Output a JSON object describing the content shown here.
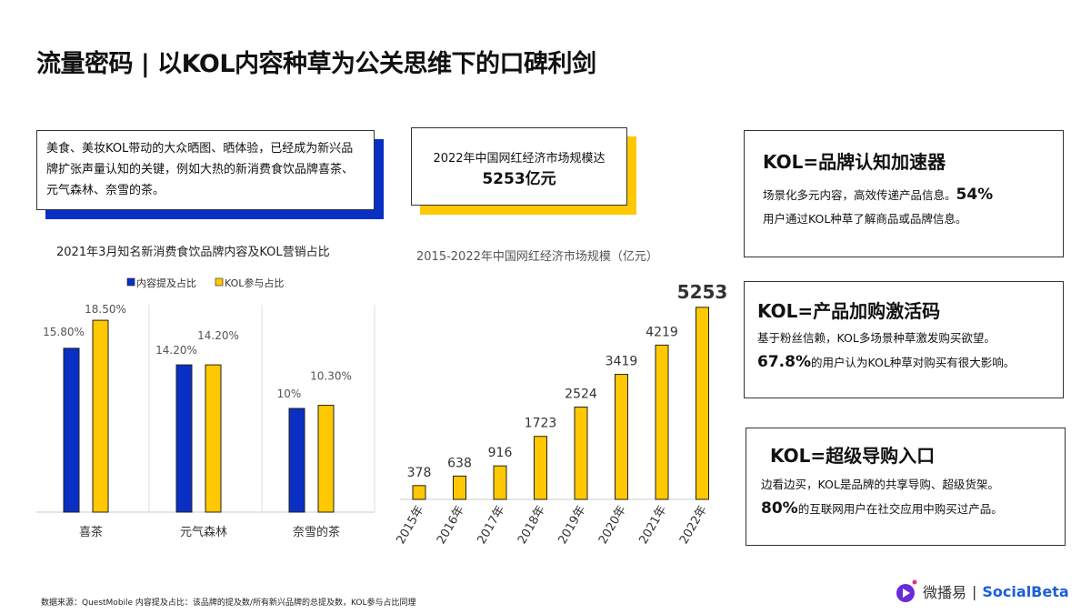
{
  "title": "流量密码 | 以KOL内容种草为公关思维下的口碑利剑",
  "left_box": "美食、美妆KOL带动的大众晒图、晒体验，已经成为新兴品牌扩张声量认知的关键，例如大热的新消费食饮品牌喜茶、元气森林、奈雪的茶。",
  "mid_box": {
    "line1": "2022年中国网红经济市场规模达",
    "line2": "5253亿元"
  },
  "cards": [
    {
      "title": "KOL=品牌认知加速器",
      "l1": "场景化多元内容，高效传递产品信息。",
      "b1": "54%",
      "l2": "用户通过KOL种草了解商品或品牌信息。"
    },
    {
      "title": "KOL=产品加购激活码",
      "l1": "基于粉丝信赖，KOL多场景种草激发购买欲望。",
      "b2": "67.8%",
      "l2": "的用户认为KOL种草对购买有很大影响。"
    },
    {
      "title": "KOL=超级导购入口",
      "l1": "边看边买，KOL是品牌的共享导购、超级货架。",
      "b2": "80%",
      "l2": "的互联网用户在社交应用中购买过产品。"
    }
  ],
  "footer": "数据来源：QuestMobile 内容提及占比：该品牌的提及数/所有新兴品牌的总提及数，KOL参与占比同理",
  "logo": {
    "cn": "微播易",
    "en": "SocialBeta"
  },
  "chart_data": [
    {
      "type": "bar",
      "title": "2021年3月知名新消费食饮品牌内容及KOL营销占比",
      "categories": [
        "喜茶",
        "元气森林",
        "奈雪的茶"
      ],
      "series": [
        {
          "name": "内容提及占比",
          "values": [
            15.8,
            14.2,
            10
          ],
          "labels": [
            "15.80%",
            "14.20%",
            "10%"
          ],
          "color": "#0a2fc4"
        },
        {
          "name": "KOL参与占比",
          "values": [
            18.5,
            14.2,
            10.3
          ],
          "labels": [
            "18.50%",
            "14.20%",
            "10.30%"
          ],
          "color": "#ffc800"
        }
      ],
      "legend": "top",
      "grid": "vertical separators"
    },
    {
      "type": "bar",
      "title": "2015-2022年中国网红经济市场规模（亿元）",
      "categories": [
        "2015年",
        "2016年",
        "2017年",
        "2018年",
        "2019年",
        "2020年",
        "2021年",
        "2022年"
      ],
      "values": [
        378,
        638,
        916,
        1723,
        2524,
        3419,
        4219,
        5253
      ],
      "color": "#ffc800"
    }
  ]
}
